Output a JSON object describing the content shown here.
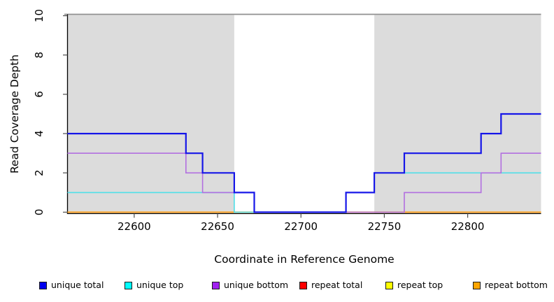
{
  "figure": {
    "x_axis_title": "Coordinate in Reference Genome",
    "y_axis_title": "Read Coverage Depth"
  },
  "chart_data": {
    "type": "line",
    "subtype": "step",
    "title": "",
    "xlabel": "Coordinate in Reference Genome",
    "ylabel": "Read Coverage Depth",
    "x_range": [
      22560,
      22844
    ],
    "y_range": [
      0,
      10
    ],
    "x_ticks": [
      22600,
      22650,
      22700,
      22750,
      22800
    ],
    "y_ticks": [
      0,
      2,
      4,
      6,
      8,
      10
    ],
    "grid": false,
    "legend_position": "bottom",
    "shaded_regions": [
      {
        "x0": 22560,
        "x1": 22660,
        "color": "#dcdcdc"
      },
      {
        "x0": 22744,
        "x1": 22844,
        "color": "#dcdcdc"
      }
    ],
    "top_border_color": "#8f8f8f",
    "series": [
      {
        "name": "repeat total",
        "line_color": "#dd2222",
        "steps": [
          [
            22560,
            0
          ]
        ]
      },
      {
        "name": "repeat top",
        "line_color": "#ffee00",
        "steps": [
          [
            22560,
            0
          ]
        ]
      },
      {
        "name": "repeat bottom",
        "line_color": "#ff9d1f",
        "steps": [
          [
            22560,
            0
          ]
        ]
      },
      {
        "name": "unique top",
        "line_color": "#4fdfe8",
        "steps": [
          [
            22560,
            1
          ],
          [
            22660,
            0
          ],
          [
            22727,
            1
          ],
          [
            22744,
            2
          ]
        ]
      },
      {
        "name": "unique bottom",
        "line_color": "#b26fe0",
        "steps": [
          [
            22560,
            3
          ],
          [
            22631,
            2
          ],
          [
            22641,
            1
          ],
          [
            22672,
            0
          ],
          [
            22762,
            1
          ],
          [
            22808,
            2
          ],
          [
            22820,
            3
          ]
        ]
      },
      {
        "name": "unique total",
        "line_color": "#1616e8",
        "steps": [
          [
            22560,
            4
          ],
          [
            22631,
            3
          ],
          [
            22641,
            2
          ],
          [
            22660,
            1
          ],
          [
            22672,
            0
          ],
          [
            22727,
            1
          ],
          [
            22744,
            2
          ],
          [
            22762,
            3
          ],
          [
            22808,
            4
          ],
          [
            22820,
            5
          ]
        ]
      }
    ]
  },
  "legend": {
    "items": [
      {
        "label": "unique total",
        "color": "#0000ee"
      },
      {
        "label": "unique top",
        "color": "#00ffff"
      },
      {
        "label": "unique bottom",
        "color": "#a020f0"
      },
      {
        "label": "repeat total",
        "color": "#ff0000"
      },
      {
        "label": "repeat top",
        "color": "#ffff00"
      },
      {
        "label": "repeat bottom",
        "color": "#ffa500"
      }
    ]
  }
}
